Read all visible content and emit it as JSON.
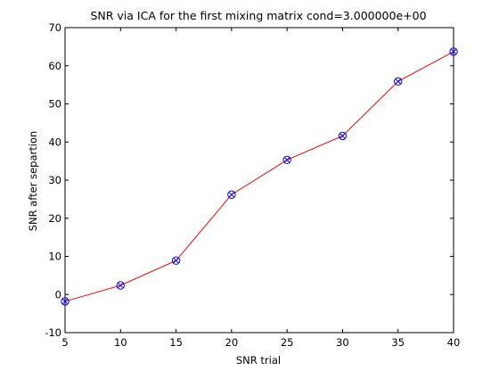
{
  "chart_data": {
    "type": "line",
    "title": "SNR via ICA for the first mixing matrix cond=3.000000e+00",
    "xlabel": "SNR trial",
    "ylabel": "SNR after separtion",
    "xlim": [
      5,
      40
    ],
    "ylim": [
      -10,
      70
    ],
    "xticks": [
      5,
      10,
      15,
      20,
      25,
      30,
      35,
      40
    ],
    "yticks": [
      -10,
      0,
      10,
      20,
      30,
      40,
      50,
      60,
      70
    ],
    "grid": false,
    "series": [
      {
        "x": [
          5,
          10,
          15,
          20,
          25,
          30,
          35,
          40
        ],
        "y": [
          -1.8,
          2.4,
          8.9,
          26.2,
          35.3,
          41.6,
          55.9,
          63.7
        ],
        "line_color": "#ff0000",
        "marker": "circle-x",
        "marker_color": "#0000ff"
      }
    ]
  }
}
